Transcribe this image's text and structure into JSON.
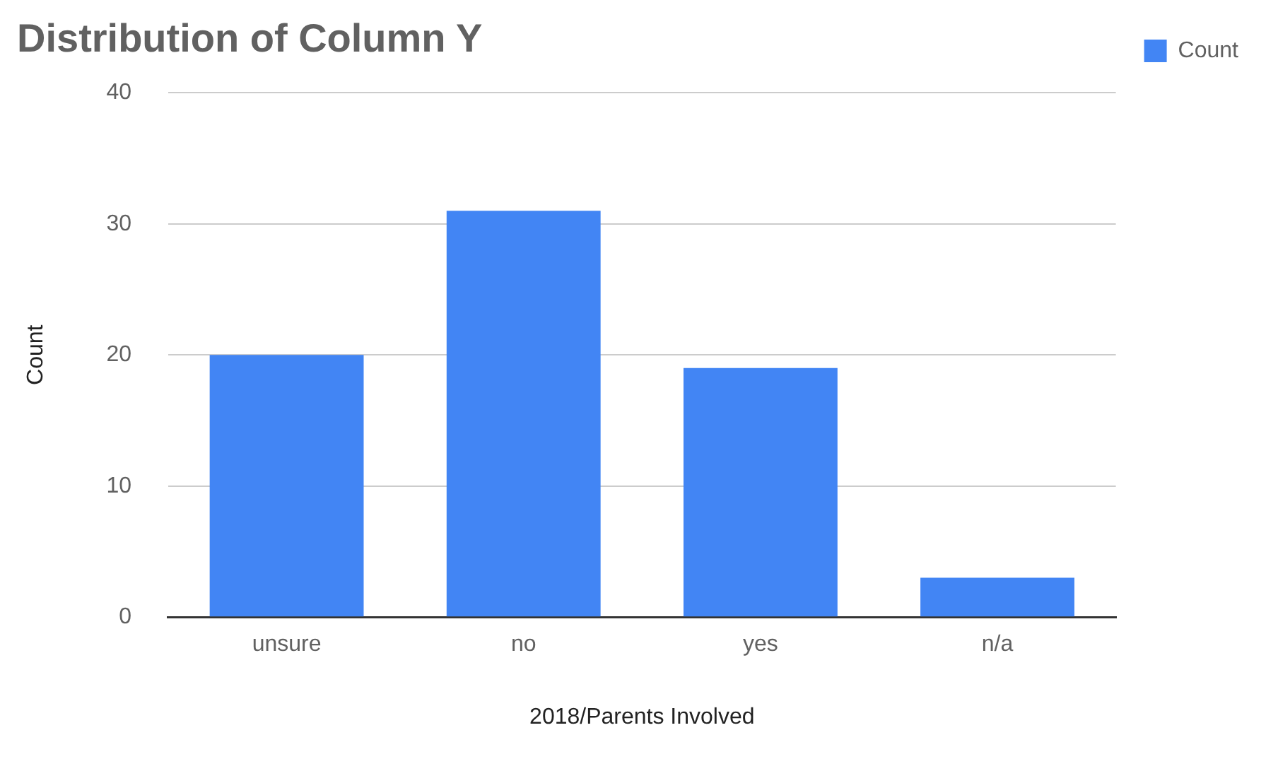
{
  "chart_data": {
    "type": "bar",
    "title": "Distribution of Column Y",
    "xlabel": "2018/Parents Involved",
    "ylabel": "Count",
    "categories": [
      "unsure",
      "no",
      "yes",
      "n/a"
    ],
    "series": [
      {
        "name": "Count",
        "color": "#4285f4",
        "values": [
          20,
          31,
          19,
          3
        ]
      }
    ],
    "ylim": [
      0,
      40
    ],
    "yticks": [
      0,
      10,
      20,
      30,
      40
    ],
    "grid": "y",
    "legend": "top right"
  }
}
